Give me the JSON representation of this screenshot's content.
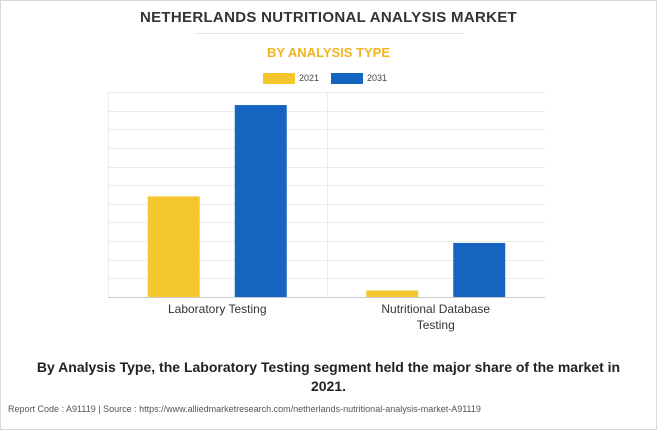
{
  "title": "NETHERLANDS NUTRITIONAL ANALYSIS MARKET",
  "subtitle": "BY ANALYSIS TYPE",
  "caption": "By Analysis Type, the Laboratory Testing segment held the major share of the market in 2021.",
  "footer": "Report Code : A91119  |  Source : https://www.alliedmarketresearch.com/netherlands-nutritional-analysis-market-A91119",
  "colors": {
    "accent": "#f2b51f",
    "series_2021": "#f4c72f",
    "series_2031": "#1565c0"
  },
  "chart_data": {
    "type": "bar",
    "categories": [
      "Laboratory Testing",
      "Nutritional Database Testing"
    ],
    "series": [
      {
        "name": "2021",
        "values": [
          54,
          3.5
        ]
      },
      {
        "name": "2031",
        "values": [
          103,
          29
        ]
      }
    ],
    "ylim": [
      0,
      110
    ],
    "grid": true,
    "legend": "top-center"
  }
}
